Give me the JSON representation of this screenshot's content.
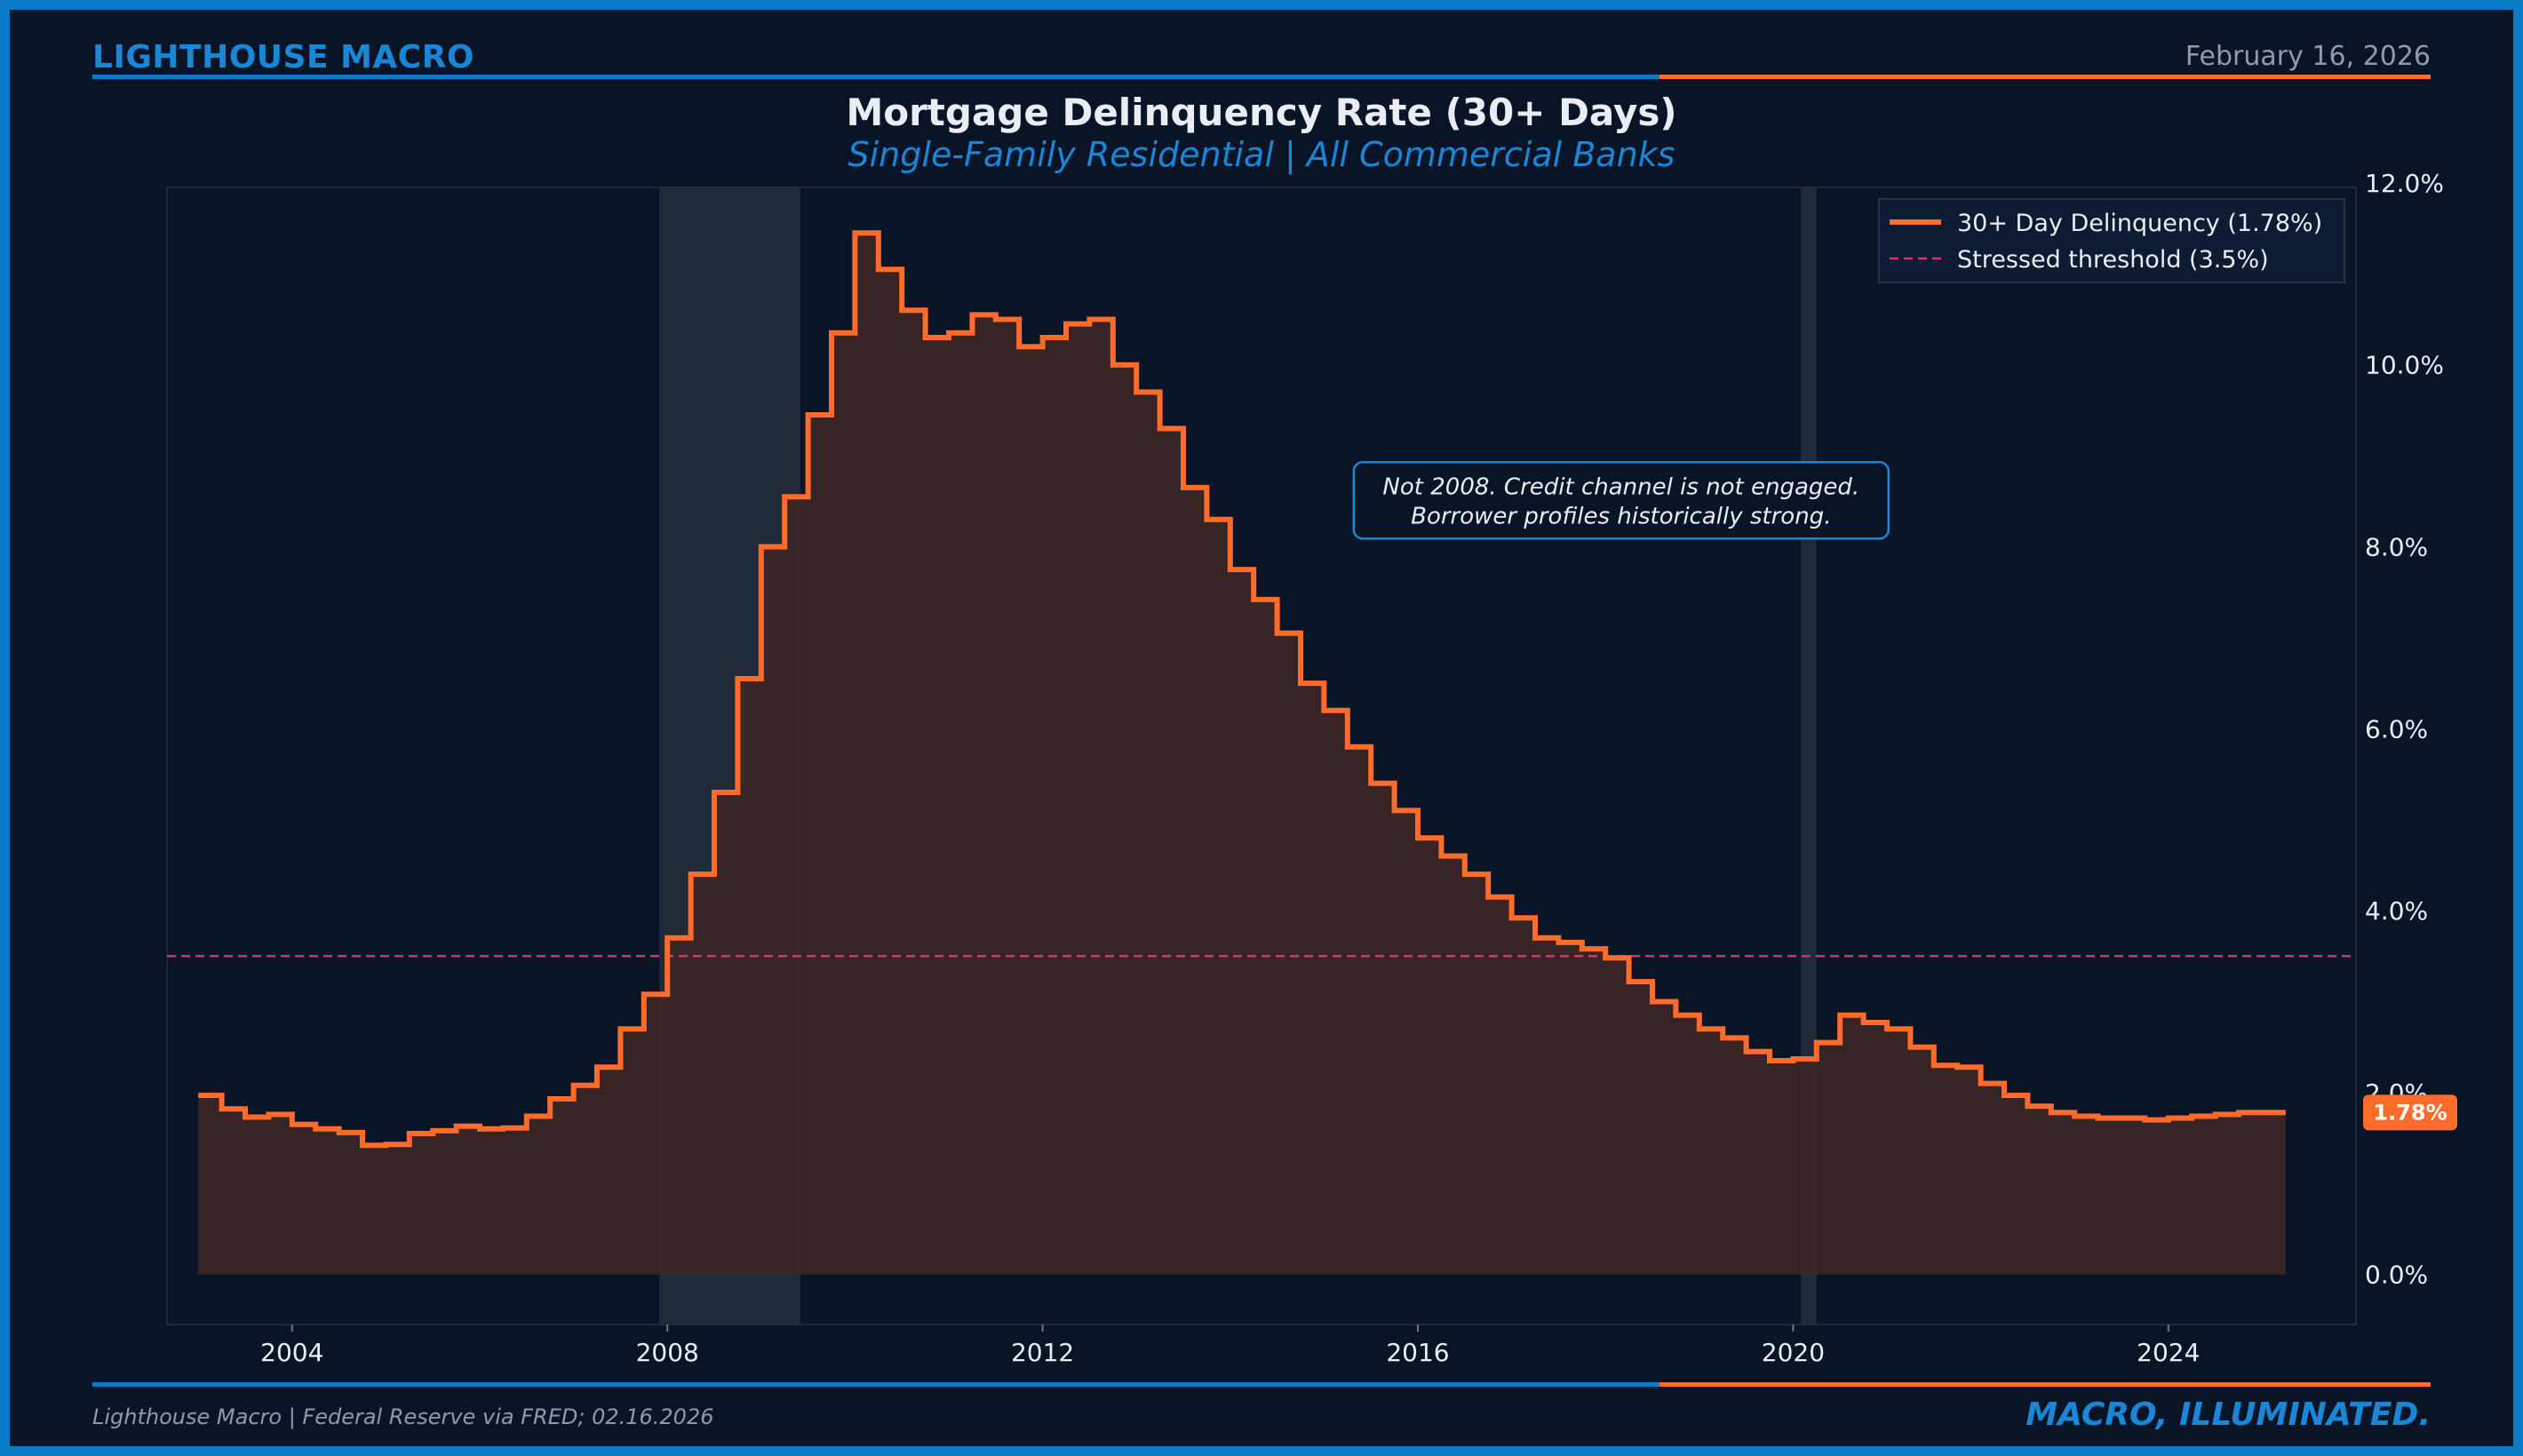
{
  "header": {
    "brand": "LIGHTHOUSE MACRO",
    "date": "February 16, 2026"
  },
  "footer": {
    "source": "Lighthouse Macro | Federal Reserve via FRED; 02.16.2026",
    "tagline": "MACRO, ILLUMINATED."
  },
  "colors": {
    "background": "#0a1427",
    "frame": "#0a7bc7",
    "brand_blue": "#1a86d6",
    "series": "#ff6b2b",
    "area_fill": "#3d2626",
    "threshold": "#d6336c",
    "recession_shade": "#27303d"
  },
  "chart_data": {
    "type": "line",
    "title": "Mortgage Delinquency Rate (30+ Days)",
    "subtitle": "Single-Family Residential | All Commercial Banks",
    "step": true,
    "filled": true,
    "frequency": "quarterly",
    "xlim": [
      "2002-09-01",
      "2026-01-01"
    ],
    "ylim": [
      -0.55,
      11.95
    ],
    "y_ticks": [
      0,
      2,
      4,
      6,
      8,
      10,
      12
    ],
    "y_tick_labels": [
      "0.0%",
      "2.0%",
      "4.0%",
      "6.0%",
      "8.0%",
      "10.0%",
      "12.0%"
    ],
    "y_axis_side": "right",
    "x_ticks": [
      "2004",
      "2008",
      "2012",
      "2016",
      "2020",
      "2024"
    ],
    "grid": false,
    "legend": {
      "position": "top-right",
      "entries": [
        "30+ Day Delinquency (1.78%)",
        "Stressed threshold (3.5%)"
      ]
    },
    "series": [
      {
        "name": "30+ Day Delinquency (1.78%)",
        "start": "2003-01-01",
        "values": [
          1.97,
          1.82,
          1.73,
          1.76,
          1.65,
          1.6,
          1.56,
          1.42,
          1.43,
          1.55,
          1.58,
          1.63,
          1.6,
          1.61,
          1.74,
          1.93,
          2.08,
          2.28,
          2.7,
          3.08,
          3.7,
          4.4,
          5.3,
          6.55,
          8.0,
          8.55,
          9.45,
          10.35,
          11.45,
          11.05,
          10.6,
          10.3,
          10.35,
          10.55,
          10.5,
          10.2,
          10.3,
          10.45,
          10.5,
          10.0,
          9.7,
          9.3,
          8.65,
          8.3,
          7.75,
          7.42,
          7.05,
          6.5,
          6.2,
          5.8,
          5.4,
          5.1,
          4.8,
          4.6,
          4.4,
          4.15,
          3.92,
          3.7,
          3.65,
          3.58,
          3.48,
          3.22,
          3.0,
          2.85,
          2.7,
          2.6,
          2.45,
          2.35,
          2.37,
          2.55,
          2.85,
          2.77,
          2.7,
          2.5,
          2.3,
          2.28,
          2.1,
          1.97,
          1.85,
          1.78,
          1.74,
          1.72,
          1.72,
          1.7,
          1.72,
          1.74,
          1.76,
          1.78,
          1.78,
          1.78
        ]
      },
      {
        "name": "Stressed threshold (3.5%)",
        "constant": 3.5
      }
    ],
    "recessions": [
      [
        "2007-12-01",
        "2009-06-01"
      ],
      [
        "2020-02-01",
        "2020-04-01"
      ]
    ],
    "annotations": [
      {
        "lines": [
          "Not 2008. Credit channel is not engaged.",
          "Borrower profiles historically strong."
        ],
        "anchor": [
          "2018-03-01",
          8.5
        ]
      }
    ],
    "last_value_label": "1.78%"
  }
}
